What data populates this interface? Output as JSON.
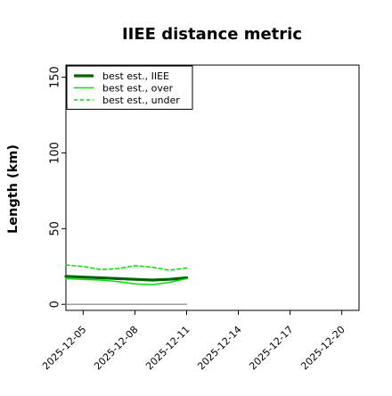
{
  "chart_data": {
    "type": "line",
    "title": "IIEE distance metric",
    "xlabel": "",
    "ylabel": "Length (km)",
    "x_ticks": [
      "2025-12-05",
      "2025-12-08",
      "2025-12-11",
      "2025-12-14",
      "2025-12-17",
      "2025-12-20"
    ],
    "xlim": [
      "2025-12-04",
      "2025-12-21"
    ],
    "ylim": [
      -4,
      158
    ],
    "y_ticks": [
      0,
      50,
      100,
      150
    ],
    "grid": false,
    "legend_position": "top-left",
    "colors": {
      "iiee": "#006400",
      "over": "#00dd00",
      "under": "#00dd00",
      "reference": "#808080"
    },
    "series": [
      {
        "name": "best est., IIEE",
        "style": "solid-thick",
        "color": "#006400",
        "points": [
          {
            "x": "2025-12-04",
            "y": 18.5
          },
          {
            "x": "2025-12-05",
            "y": 18.0
          },
          {
            "x": "2025-12-06",
            "y": 17.5
          },
          {
            "x": "2025-12-07",
            "y": 17.0
          },
          {
            "x": "2025-12-08",
            "y": 16.5
          },
          {
            "x": "2025-12-09",
            "y": 16.0
          },
          {
            "x": "2025-12-10",
            "y": 16.5
          },
          {
            "x": "2025-12-11",
            "y": 17.5
          }
        ]
      },
      {
        "name": "best est., over",
        "style": "solid",
        "color": "#00dd00",
        "points": [
          {
            "x": "2025-12-04",
            "y": 17.0
          },
          {
            "x": "2025-12-05",
            "y": 16.5
          },
          {
            "x": "2025-12-06",
            "y": 16.0
          },
          {
            "x": "2025-12-07",
            "y": 15.0
          },
          {
            "x": "2025-12-08",
            "y": 13.5
          },
          {
            "x": "2025-12-09",
            "y": 13.0
          },
          {
            "x": "2025-12-10",
            "y": 14.5
          },
          {
            "x": "2025-12-11",
            "y": 17.0
          }
        ]
      },
      {
        "name": "best est., under",
        "style": "dashed",
        "color": "#00dd00",
        "points": [
          {
            "x": "2025-12-04",
            "y": 26.0
          },
          {
            "x": "2025-12-05",
            "y": 25.0
          },
          {
            "x": "2025-12-06",
            "y": 23.0
          },
          {
            "x": "2025-12-07",
            "y": 23.5
          },
          {
            "x": "2025-12-08",
            "y": 25.5
          },
          {
            "x": "2025-12-09",
            "y": 24.5
          },
          {
            "x": "2025-12-10",
            "y": 22.5
          },
          {
            "x": "2025-12-11",
            "y": 24.0
          }
        ]
      },
      {
        "name": "",
        "style": "solid-thin",
        "color": "#808080",
        "legend": false,
        "points": [
          {
            "x": "2025-12-04",
            "y": 0
          },
          {
            "x": "2025-12-11",
            "y": 0
          }
        ]
      }
    ]
  }
}
